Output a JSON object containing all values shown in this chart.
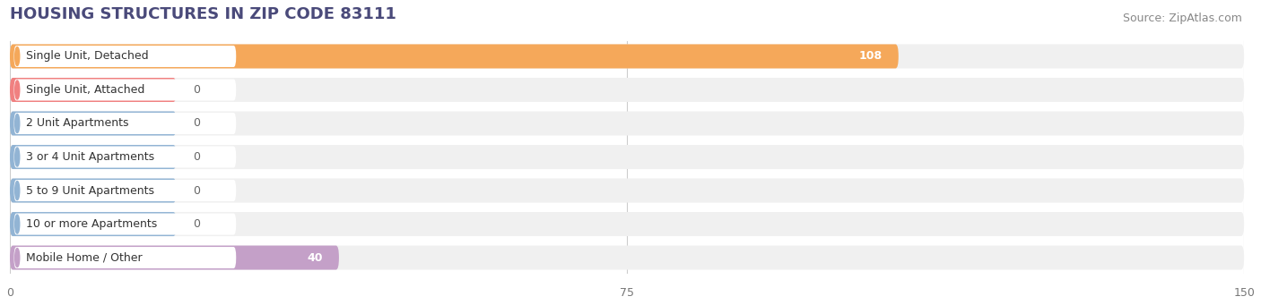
{
  "title": "HOUSING STRUCTURES IN ZIP CODE 83111",
  "source": "Source: ZipAtlas.com",
  "categories": [
    "Single Unit, Detached",
    "Single Unit, Attached",
    "2 Unit Apartments",
    "3 or 4 Unit Apartments",
    "5 to 9 Unit Apartments",
    "10 or more Apartments",
    "Mobile Home / Other"
  ],
  "values": [
    108,
    0,
    0,
    0,
    0,
    0,
    40
  ],
  "bar_colors": [
    "#F5A85A",
    "#F08080",
    "#92B4D4",
    "#92B4D4",
    "#92B4D4",
    "#92B4D4",
    "#C4A0C8"
  ],
  "xlim": [
    0,
    150
  ],
  "xticks": [
    0,
    75,
    150
  ],
  "background_color": "#ffffff",
  "bar_background_color": "#f0f0f0",
  "title_fontsize": 13,
  "source_fontsize": 9,
  "label_fontsize": 9,
  "value_label_color_inside": "#ffffff",
  "value_label_color_outside": "#666666",
  "title_color": "#4a4a7a",
  "source_color": "#888888"
}
